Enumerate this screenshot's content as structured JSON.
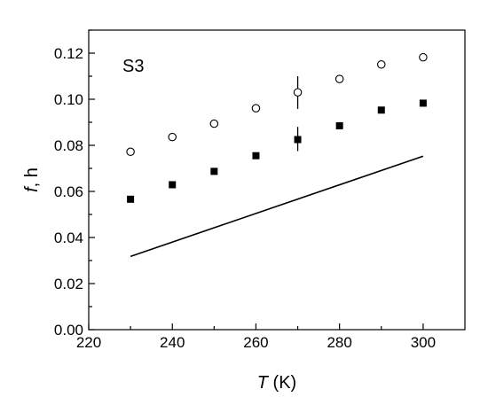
{
  "chart_data": {
    "type": "scatter",
    "title": "",
    "xlabel": {
      "italic": "T",
      "rest": " (K)"
    },
    "ylabel": {
      "italic": "f",
      "rest": ", h"
    },
    "xlim": [
      220,
      310
    ],
    "ylim": [
      0.0,
      0.13
    ],
    "x_ticks": [
      220,
      240,
      260,
      280,
      300
    ],
    "x_tick_labels": [
      "220",
      "240",
      "260",
      "280",
      "300"
    ],
    "y_ticks": [
      0.0,
      0.02,
      0.04,
      0.06,
      0.08,
      0.1,
      0.12
    ],
    "y_tick_labels": [
      "0.00",
      "0.02",
      "0.04",
      "0.06",
      "0.08",
      "0.10",
      "0.12"
    ],
    "annotation": "S3",
    "grid": false,
    "series": [
      {
        "marker": "open-circle",
        "x": [
          230,
          240,
          250,
          260,
          270,
          280,
          290,
          300
        ],
        "y": [
          0.0772,
          0.0836,
          0.0894,
          0.0961,
          0.103,
          0.1088,
          0.1151,
          0.1182
        ],
        "error_bars": [
          {
            "x": 270,
            "low": 0.0958,
            "high": 0.11
          }
        ]
      },
      {
        "marker": "filled-square",
        "x": [
          230,
          240,
          250,
          260,
          270,
          280,
          290,
          300
        ],
        "y": [
          0.0566,
          0.0629,
          0.0687,
          0.0755,
          0.0825,
          0.0885,
          0.0953,
          0.0983
        ],
        "error_bars": [
          {
            "x": 270,
            "low": 0.0775,
            "high": 0.088
          }
        ]
      },
      {
        "marker": "line",
        "x": [
          230,
          300
        ],
        "y": [
          0.0318,
          0.0753
        ]
      }
    ]
  }
}
